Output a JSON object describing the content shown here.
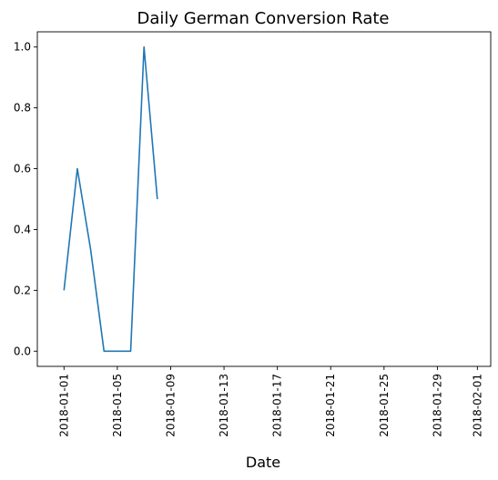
{
  "chart_data": {
    "type": "line",
    "title": "Daily German Conversion Rate",
    "xlabel": "Date",
    "ylabel": "",
    "x": [
      "2018-01-01",
      "2018-01-02",
      "2018-01-03",
      "2018-01-04",
      "2018-01-05",
      "2018-01-06",
      "2018-01-07",
      "2018-01-08"
    ],
    "series": [
      {
        "values": [
          0.2,
          0.6,
          0.3333,
          0.0,
          0.0,
          0.0,
          1.0,
          0.5
        ],
        "color": "#1f77b4"
      }
    ],
    "xlim": [
      "2017-12-30",
      "2018-02-02"
    ],
    "ylim": [
      -0.05,
      1.05
    ],
    "x_ticks": [
      "2018-01-01",
      "2018-01-05",
      "2018-01-09",
      "2018-01-13",
      "2018-01-17",
      "2018-01-21",
      "2018-01-25",
      "2018-01-29",
      "2018-02-01"
    ],
    "y_ticks": [
      0.0,
      0.2,
      0.4,
      0.6,
      0.8,
      1.0
    ],
    "y_tick_labels": [
      "0.0",
      "0.2",
      "0.4",
      "0.6",
      "0.8",
      "1.0"
    ],
    "grid": false,
    "legend": "none"
  }
}
